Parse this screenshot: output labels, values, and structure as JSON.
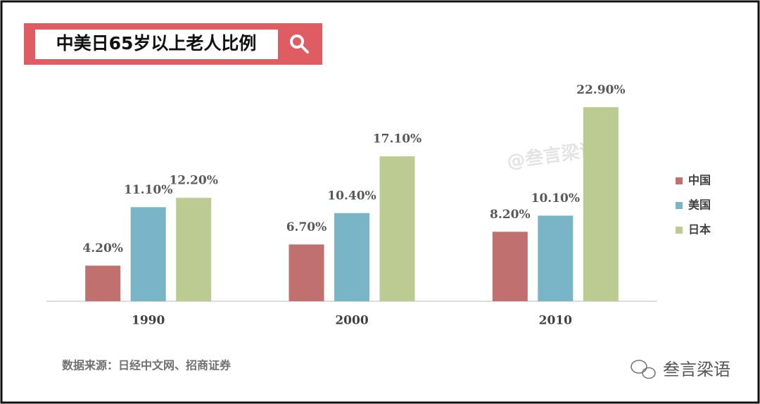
{
  "chart_data": {
    "type": "bar",
    "title": "中美日65岁以上老人比例",
    "categories": [
      "1990",
      "2000",
      "2010"
    ],
    "series": [
      {
        "name": "中国",
        "color": "#c0716f",
        "values": [
          4.2,
          6.7,
          8.2
        ],
        "value_labels": [
          "4.20%",
          "6.70%",
          "8.20%"
        ]
      },
      {
        "name": "美国",
        "color": "#79b4c7",
        "values": [
          11.1,
          10.4,
          10.1
        ],
        "value_labels": [
          "11.10%",
          "10.40%",
          "10.10%"
        ]
      },
      {
        "name": "日本",
        "color": "#bccb92",
        "values": [
          12.2,
          17.1,
          22.9
        ],
        "value_labels": [
          "12.20%",
          "17.10%",
          "22.90%"
        ]
      }
    ],
    "ylim": [
      0,
      25
    ],
    "legend": "right",
    "source": "数据来源：日经中文网、招商证券",
    "watermark": "@叁言梁语",
    "logo_text": "叁言梁语"
  }
}
